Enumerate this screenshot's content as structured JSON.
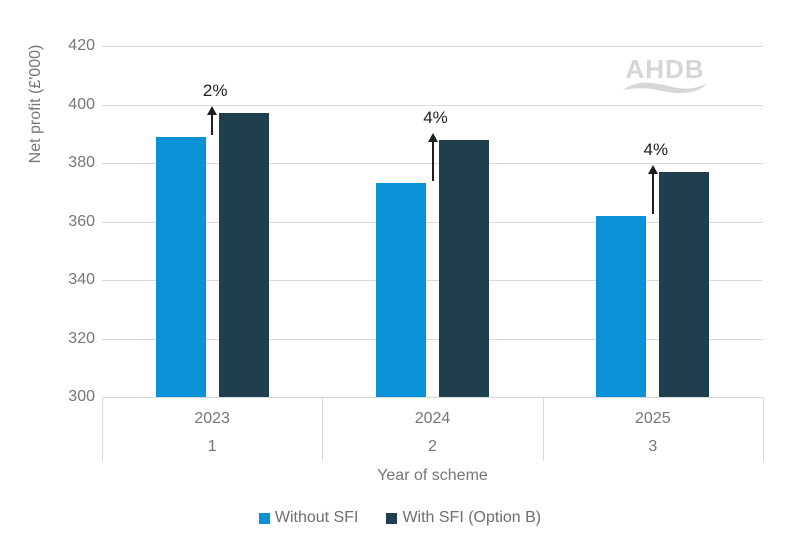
{
  "chart_data": {
    "type": "bar",
    "title": "",
    "ylabel": "Net profit (£'000)",
    "xlabel": "Year of scheme",
    "ylim": [
      300,
      420
    ],
    "yticks": [
      420,
      400,
      380,
      360,
      340,
      320,
      300
    ],
    "grid": "horizontal",
    "legend_position": "bottom-center",
    "categories": [
      {
        "year": "2023",
        "scheme_year": "1"
      },
      {
        "year": "2024",
        "scheme_year": "2"
      },
      {
        "year": "2025",
        "scheme_year": "3"
      }
    ],
    "series": [
      {
        "name": "Without SFI",
        "color": "#0992d5",
        "values": [
          389,
          373,
          362
        ]
      },
      {
        "name": "With SFI (Option B)",
        "color": "#1f3f4e",
        "values": [
          397,
          388,
          377
        ]
      }
    ],
    "annotations": [
      {
        "category": "2023",
        "label": "2%"
      },
      {
        "category": "2024",
        "label": "4%"
      },
      {
        "category": "2025",
        "label": "4%"
      }
    ]
  },
  "watermark": {
    "text": "AHDB"
  },
  "colors": {
    "without_sfi": "#0992d5",
    "with_sfi": "#1f3f4e",
    "gridline": "#d9d9d9",
    "axis_text": "#767676",
    "annotation_text": "#1f1f1f",
    "watermark": "#d6d6d6"
  }
}
